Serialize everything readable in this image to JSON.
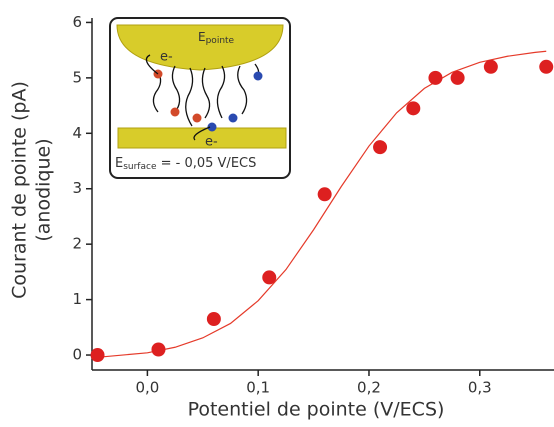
{
  "chart_data": {
    "type": "scatter",
    "xlabel": "Potentiel de pointe (V/ECS)",
    "ylabel": [
      "Courant de pointe (pA)",
      "(anodique)"
    ],
    "xlim": [
      -0.05,
      0.367
    ],
    "ylim": [
      -0.27,
      6.08
    ],
    "xticks": [
      {
        "value": 0,
        "label": "0,0"
      },
      {
        "value": 0.1,
        "label": "0,1"
      },
      {
        "value": 0.2,
        "label": "0,2"
      },
      {
        "value": 0.3,
        "label": "0,3"
      }
    ],
    "yticks": [
      0,
      1,
      2,
      3,
      4,
      5,
      6
    ],
    "series": [
      {
        "type": "scatter",
        "color": "#dd2020",
        "x": [
          -0.045,
          0.01,
          0.06,
          0.11,
          0.16,
          0.21,
          0.24,
          0.26,
          0.28,
          0.31,
          0.36
        ],
        "values": [
          0,
          0.1,
          0.65,
          1.4,
          2.9,
          3.75,
          4.45,
          5.0,
          5.0,
          5.2,
          5.2
        ]
      },
      {
        "type": "line",
        "color": "#e53a2a",
        "x": [
          -0.05,
          0,
          0.025,
          0.05,
          0.075,
          0.1,
          0.125,
          0.15,
          0.175,
          0.2,
          0.225,
          0.25,
          0.275,
          0.3,
          0.325,
          0.35,
          0.36
        ],
        "values": [
          -0.05,
          0.04,
          0.14,
          0.31,
          0.57,
          0.98,
          1.54,
          2.26,
          3.04,
          3.77,
          4.37,
          4.81,
          5.1,
          5.28,
          5.39,
          5.46,
          5.48
        ]
      }
    ]
  },
  "inset": {
    "tip_e": "E",
    "tip_sub": "pointe",
    "electron_top": "e-",
    "electron_bottom": "e-",
    "surface_e": "E",
    "surface_sub": "surface",
    "surface_value": " = - 0,05 V/ECS"
  }
}
